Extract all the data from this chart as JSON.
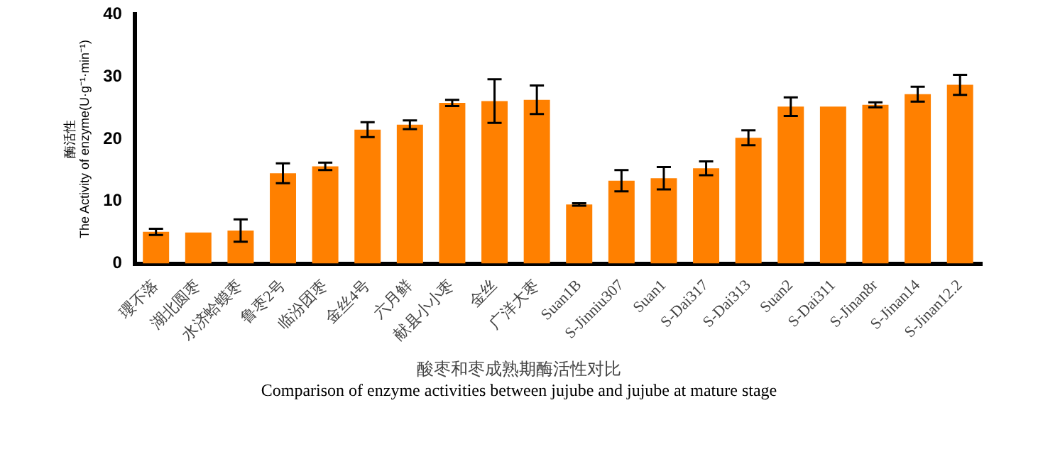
{
  "chart_data": {
    "type": "bar",
    "title": "酸枣和枣成熟期酶活性对比",
    "subtitle": "Comparison of enzyme activities between jujube and jujube at mature stage",
    "ylabel": "酶活性\nThe Activity of enzyme(U·g⁻¹·min⁻¹)",
    "categories": [
      "瓔不落",
      "湖北圆枣",
      "水济蛤蟆枣",
      "鲁枣2号",
      "临汾团枣",
      "金丝4号",
      "六月鲜",
      "献县小小枣",
      "金丝",
      "广洋大枣",
      "Suan1B",
      "S-Jinniu307",
      "Suan1",
      "S-Dai317",
      "S-Dai313",
      "Suan2",
      "S-Dai311",
      "S-Jinan8r",
      "S-Jinan14",
      "S-Jinan12.2"
    ],
    "values": [
      5.1,
      5.0,
      5.3,
      14.5,
      15.6,
      21.5,
      22.3,
      25.8,
      26.1,
      26.3,
      9.5,
      13.3,
      13.7,
      15.3,
      20.2,
      25.2,
      25.2,
      25.5,
      27.2,
      28.7
    ],
    "errors": [
      0.5,
      null,
      1.8,
      1.6,
      0.6,
      1.2,
      0.7,
      0.5,
      3.5,
      2.3,
      0.2,
      1.7,
      1.8,
      1.1,
      1.2,
      1.5,
      null,
      0.4,
      1.2,
      1.6
    ],
    "color": "#ff8000",
    "ylim": [
      0,
      40
    ],
    "yticks": [
      0,
      10,
      20,
      30,
      40
    ],
    "grid": false,
    "legend": false
  }
}
